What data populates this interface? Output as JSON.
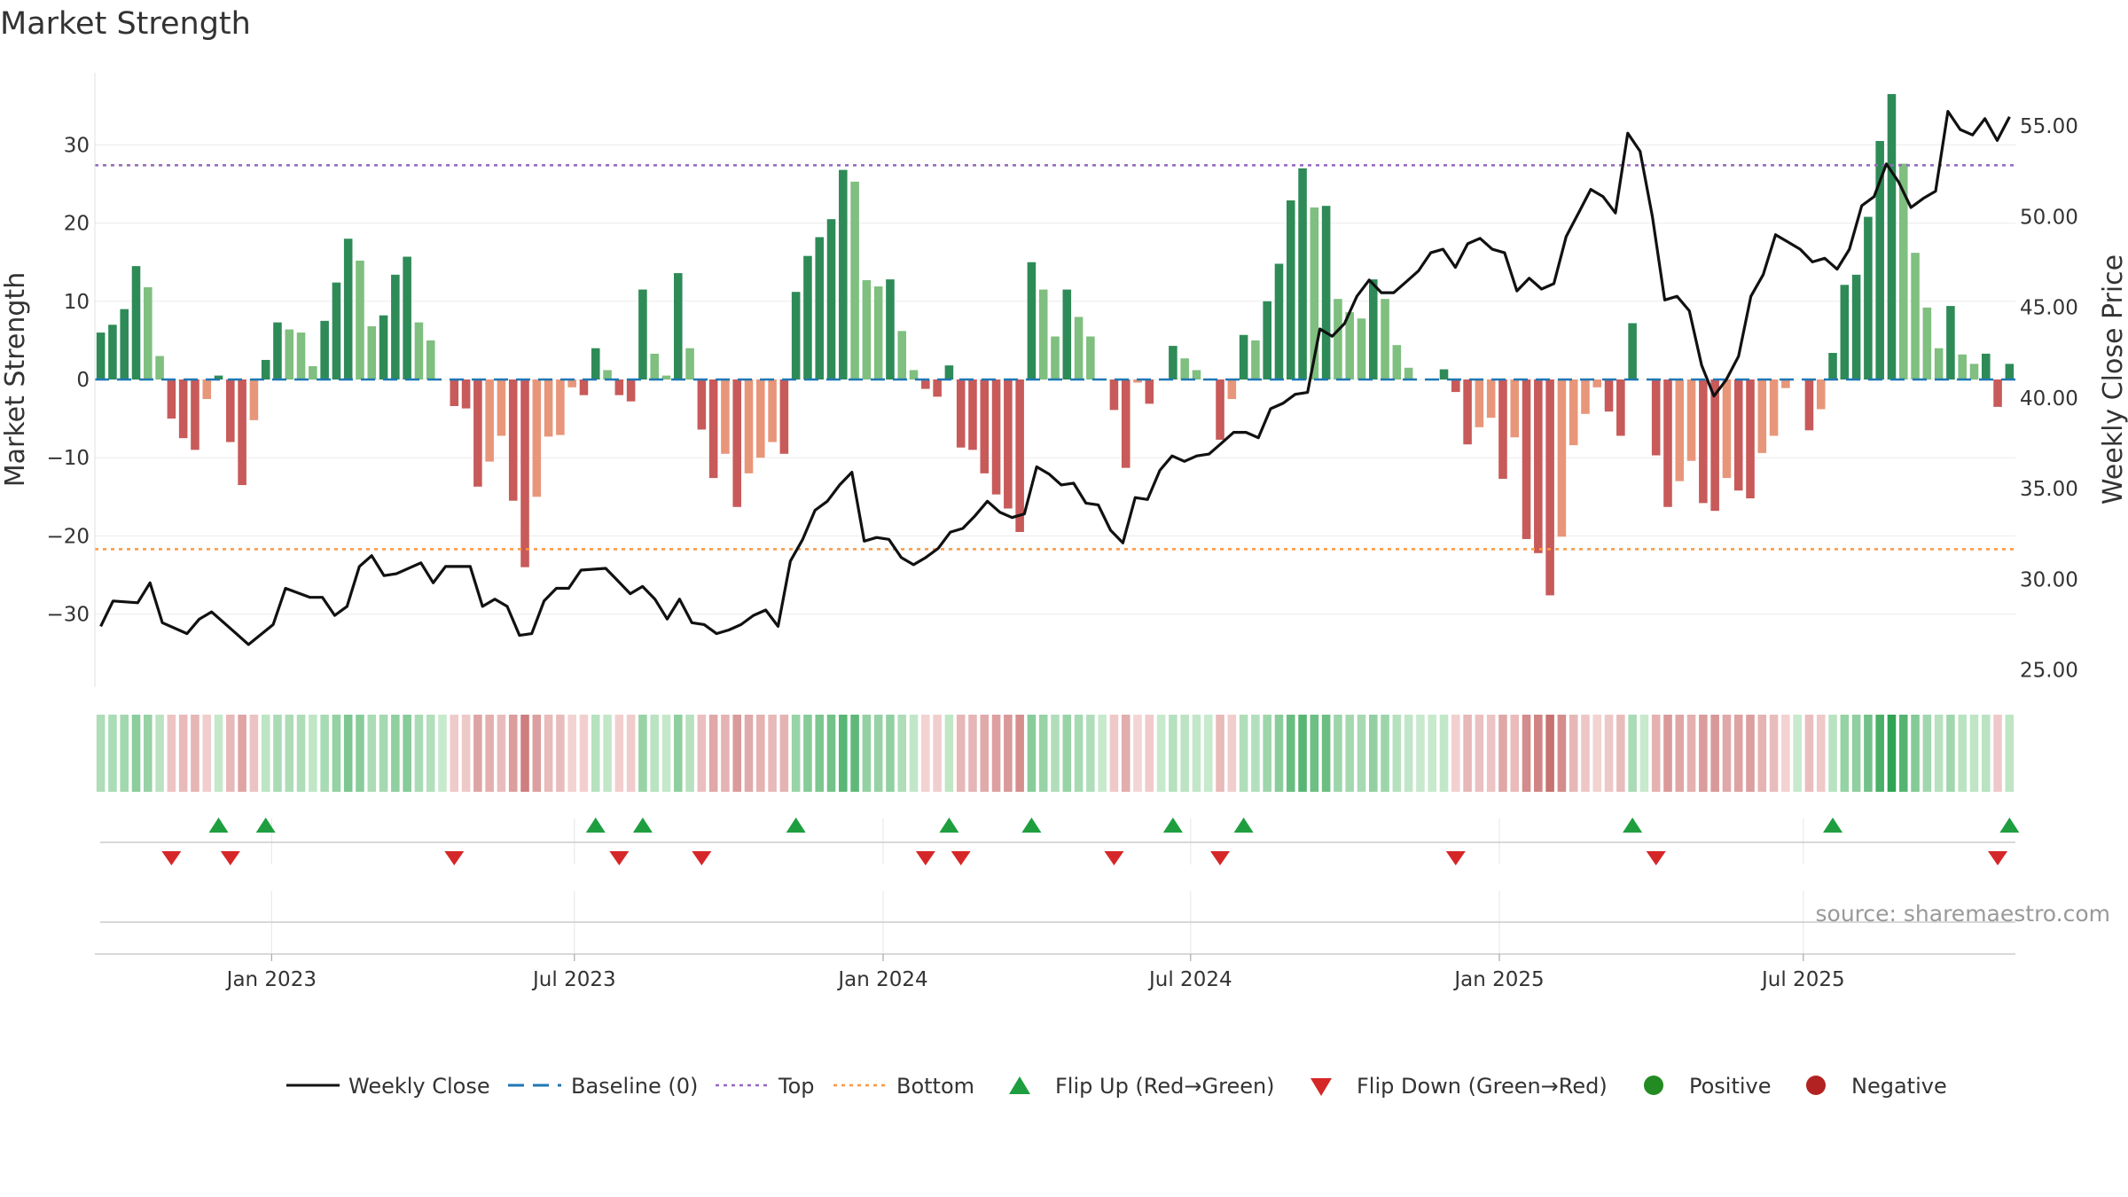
{
  "chart_data": {
    "type": "bar",
    "title": "Market Strength",
    "ylabel_left": "Market Strength",
    "ylabel_right": "Weekly Close Price",
    "ylim_left": [
      -39,
      39
    ],
    "yticks_left": [
      30,
      20,
      10,
      0,
      -10,
      -20,
      -30
    ],
    "yticks_left_labels": [
      "30",
      "20",
      "10",
      "0",
      "−10",
      "−20",
      "−30"
    ],
    "ylim_right": [
      23.4,
      57.8
    ],
    "yticks_right": [
      55,
      50,
      45,
      40,
      35,
      30,
      25
    ],
    "yticks_right_labels": [
      "55.00",
      "50.00",
      "45.00",
      "40.00",
      "35.00",
      "30.00",
      "25.00"
    ],
    "x_dates": [
      "Jan 2023",
      "Jul 2023",
      "Jan 2024",
      "Jul 2024",
      "Jan 2025",
      "Jul 2025"
    ],
    "x_date_week_index": [
      14.5,
      40.2,
      66.4,
      92.5,
      118.7,
      144.5
    ],
    "top_line": 27.4,
    "bottom_line": -21.7,
    "grid": true,
    "legend_position": "bottom",
    "strength": [
      6,
      7,
      9,
      14.5,
      11.8,
      3,
      -5,
      -7.5,
      -9,
      -2.5,
      0.5,
      -8,
      -13.5,
      -5.2,
      2.5,
      7.3,
      6.4,
      6,
      1.7,
      7.5,
      12.4,
      18,
      15.2,
      6.8,
      8.2,
      13.4,
      15.7,
      7.3,
      5,
      0,
      -3.4,
      -3.7,
      -13.7,
      -10.5,
      -7.2,
      -15.5,
      -24,
      -15,
      -7.3,
      -7.1,
      -1,
      -2,
      4,
      1.2,
      -2,
      -2.8,
      11.5,
      3.3,
      0.5,
      13.6,
      4,
      -6.4,
      -12.6,
      -9.5,
      -16.3,
      -12,
      -10,
      -8,
      -9.5,
      11.2,
      15.8,
      18.2,
      20.5,
      26.8,
      25.3,
      12.7,
      11.9,
      12.8,
      6.2,
      1.2,
      -1.2,
      -2.2,
      1.8,
      -8.7,
      -9,
      -12,
      -14.7,
      -16.5,
      -19.5,
      15,
      11.5,
      5.5,
      11.5,
      8,
      5.5,
      0,
      -3.9,
      -11.3,
      -0.4,
      -3.1,
      0,
      4.3,
      2.7,
      1.2,
      0,
      -7.7,
      -2.5,
      5.7,
      5,
      10,
      14.8,
      22.9,
      27,
      22,
      22.2,
      10.3,
      8.6,
      7.8,
      12.8,
      10.3,
      4.4,
      1.5,
      0,
      0,
      1.3,
      -1.6,
      -8.3,
      -6.1,
      -4.9,
      -12.7,
      -7.4,
      -20.4,
      -22.2,
      -27.6,
      -20.1,
      -8.4,
      -4.4,
      -1,
      -4.1,
      -7.2,
      7.2,
      0,
      -9.7,
      -16.3,
      -13,
      -10.4,
      -15.8,
      -16.8,
      -12.6,
      -14.2,
      -15.2,
      -9.4,
      -7.2,
      -1.1,
      0,
      -6.5,
      -3.8,
      3.4,
      12.1,
      13.4,
      20.8,
      30.5,
      36.5,
      27.6,
      16.2,
      9.2,
      4,
      9.4,
      3.2,
      2,
      3.3,
      -3.5,
      2
    ]
  },
  "legend": {
    "weekly_close": "Weekly Close",
    "baseline": "Baseline (0)",
    "top": "Top",
    "bottom": "Bottom",
    "flip_up": "Flip Up (Red→Green)",
    "flip_down": "Flip Down (Green→Red)",
    "positive": "Positive",
    "negative": "Negative"
  },
  "source": "source: sharemaestro.com",
  "colors": {
    "pos_strong": "#2e8b57",
    "pos_weak": "#7fbf7f",
    "neg_strong": "#c85a5a",
    "neg_weak": "#e8967a",
    "price_line": "#111111",
    "baseline": "#1f77b4",
    "top_line": "#9467bd",
    "bottom_line": "#ff9640",
    "flip_up": "#1f9e3f",
    "flip_down": "#d62728",
    "positive_marker": "#228b22",
    "negative_marker": "#b22222"
  }
}
